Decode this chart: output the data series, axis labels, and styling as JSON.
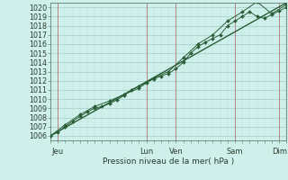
{
  "xlabel": "Pression niveau de la mer( hPa )",
  "bg_color": "#cff0ea",
  "grid_color_major": "#9ecec5",
  "grid_color_minor": "#b8e0db",
  "line_color": "#2a5e38",
  "vline_color": "#c06060",
  "ylim": [
    1005.5,
    1020.5
  ],
  "xlim": [
    0,
    96
  ],
  "yticks": [
    1006,
    1007,
    1008,
    1009,
    1010,
    1011,
    1012,
    1013,
    1014,
    1015,
    1016,
    1017,
    1018,
    1019,
    1020
  ],
  "xtick_positions": [
    3,
    39,
    51,
    75,
    93
  ],
  "xtick_labels": [
    "Jeu",
    "Lun",
    "Ven",
    "Sam",
    "Dim"
  ],
  "vlines": [
    3,
    39,
    51,
    75,
    93
  ],
  "series1_x": [
    0,
    3,
    6,
    9,
    12,
    15,
    18,
    21,
    24,
    27,
    30,
    33,
    36,
    39,
    42,
    45,
    48,
    51,
    54,
    57,
    60,
    63,
    66,
    69,
    72,
    75,
    78,
    81,
    84,
    87,
    90,
    93,
    96
  ],
  "series1_y": [
    1006.0,
    1006.4,
    1007.0,
    1007.6,
    1008.1,
    1008.6,
    1009.0,
    1009.2,
    1009.5,
    1009.9,
    1010.4,
    1011.0,
    1011.4,
    1011.8,
    1012.2,
    1012.5,
    1012.8,
    1013.3,
    1014.0,
    1015.0,
    1015.7,
    1016.2,
    1016.6,
    1017.0,
    1018.0,
    1018.5,
    1019.0,
    1019.5,
    1019.0,
    1018.8,
    1019.2,
    1019.6,
    1020.0
  ],
  "series2_x": [
    0,
    6,
    12,
    18,
    24,
    30,
    36,
    42,
    48,
    54,
    60,
    66,
    72,
    78,
    84,
    90,
    96
  ],
  "series2_y": [
    1006.0,
    1007.2,
    1008.3,
    1009.2,
    1009.8,
    1010.5,
    1011.2,
    1012.3,
    1013.0,
    1014.5,
    1016.0,
    1017.0,
    1018.5,
    1019.5,
    1020.6,
    1019.3,
    1020.3
  ],
  "series3_x": [
    0,
    96
  ],
  "series3_y": [
    1006.0,
    1020.5
  ]
}
